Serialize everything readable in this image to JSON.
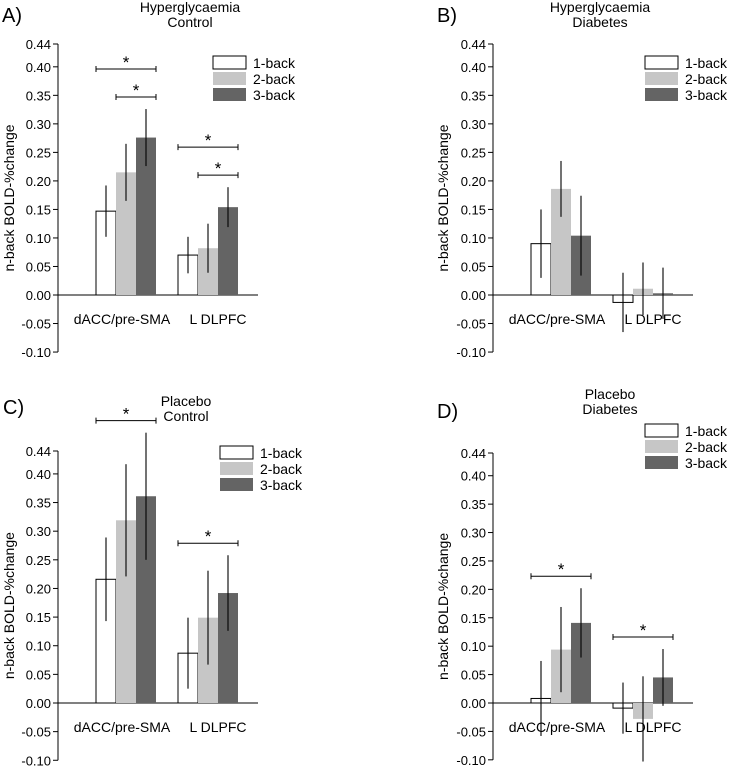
{
  "figure": {
    "legend": [
      {
        "name": "1-back",
        "color": "#ffffff"
      },
      {
        "name": "2-back",
        "color": "#c6c6c6"
      },
      {
        "name": "3-back",
        "color": "#646464"
      }
    ]
  },
  "chart_data": [
    {
      "type": "bar",
      "panel_label": "A)",
      "title": [
        "Hyperglycaemia",
        "Control"
      ],
      "ylabel": "n-back BOLD-%change",
      "ylim": [
        -0.1,
        0.44
      ],
      "yticks": [
        "0.44",
        "0.40",
        "0.35",
        "0.30",
        "0.25",
        "0.20",
        "0.15",
        "0.10",
        "0.05",
        "0.00",
        "-0.05",
        "-0.10"
      ],
      "categories": [
        "dACC/pre-SMA",
        "L DLPFC"
      ],
      "series": [
        {
          "name": "1-back",
          "values": [
            0.147,
            0.07
          ],
          "error": [
            0.045,
            0.032
          ]
        },
        {
          "name": "2-back",
          "values": [
            0.215,
            0.082
          ],
          "error": [
            0.05,
            0.043
          ]
        },
        {
          "name": "3-back",
          "values": [
            0.276,
            0.154
          ],
          "error": [
            0.05,
            0.035
          ]
        }
      ],
      "significance": [
        {
          "category": 0,
          "from": 0,
          "to": 2,
          "label": "*"
        },
        {
          "category": 0,
          "from": 1,
          "to": 2,
          "label": "*"
        },
        {
          "category": 1,
          "from": 0,
          "to": 2,
          "label": "*"
        },
        {
          "category": 1,
          "from": 1,
          "to": 2,
          "label": "*"
        }
      ]
    },
    {
      "type": "bar",
      "panel_label": "B)",
      "title": [
        "Hyperglycaemia",
        "Diabetes"
      ],
      "ylabel": "n-back BOLD-%change",
      "ylim": [
        -0.1,
        0.44
      ],
      "yticks": [
        "0.44",
        "0.40",
        "0.35",
        "0.30",
        "0.25",
        "0.20",
        "0.15",
        "0.10",
        "0.05",
        "0.00",
        "-0.05",
        "-0.10"
      ],
      "categories": [
        "dACC/pre-SMA",
        "L DLPFC"
      ],
      "series": [
        {
          "name": "1-back",
          "values": [
            0.09,
            -0.013
          ],
          "error": [
            0.06,
            0.052
          ]
        },
        {
          "name": "2-back",
          "values": [
            0.186,
            0.011
          ],
          "error": [
            0.049,
            0.046
          ]
        },
        {
          "name": "3-back",
          "values": [
            0.104,
            0.003
          ],
          "error": [
            0.07,
            0.045
          ]
        }
      ],
      "significance": []
    },
    {
      "type": "bar",
      "panel_label": "C)",
      "title": [
        "Placebo",
        "Control"
      ],
      "ylabel": "n-back BOLD-%change",
      "ylim": [
        -0.1,
        0.44
      ],
      "yticks": [
        "0.44",
        "0.40",
        "0.35",
        "0.30",
        "0.25",
        "0.20",
        "0.15",
        "0.10",
        "0.05",
        "0.00",
        "-0.05",
        "-0.10"
      ],
      "categories": [
        "dACC/pre-SMA",
        "L DLPFC"
      ],
      "series": [
        {
          "name": "1-back",
          "values": [
            0.216,
            0.087
          ],
          "error": [
            0.073,
            0.062
          ]
        },
        {
          "name": "2-back",
          "values": [
            0.319,
            0.149
          ],
          "error": [
            0.098,
            0.082
          ]
        },
        {
          "name": "3-back",
          "values": [
            0.361,
            0.192
          ],
          "error": [
            0.111,
            0.066
          ]
        }
      ],
      "significance": [
        {
          "category": 0,
          "from": 0,
          "to": 2,
          "label": "*"
        },
        {
          "category": 1,
          "from": 0,
          "to": 2,
          "label": "*"
        }
      ]
    },
    {
      "type": "bar",
      "panel_label": "D)",
      "title": [
        "Placebo",
        "Diabetes"
      ],
      "ylabel": "n-back BOLD-%change",
      "ylim": [
        -0.1,
        0.44
      ],
      "yticks": [
        "0.44",
        "0.40",
        "0.35",
        "0.30",
        "0.25",
        "0.20",
        "0.15",
        "0.10",
        "0.05",
        "0.00",
        "-0.05",
        "-0.10"
      ],
      "categories": [
        "dACC/pre-SMA",
        "L DLPFC"
      ],
      "series": [
        {
          "name": "1-back",
          "values": [
            0.008,
            -0.009
          ],
          "error": [
            0.066,
            0.045
          ]
        },
        {
          "name": "2-back",
          "values": [
            0.094,
            -0.028
          ],
          "error": [
            0.075,
            0.075
          ]
        },
        {
          "name": "3-back",
          "values": [
            0.141,
            0.045
          ],
          "error": [
            0.061,
            0.05
          ]
        }
      ],
      "significance": [
        {
          "category": 0,
          "from": 0,
          "to": 2,
          "label": "*"
        },
        {
          "category": 1,
          "from": 0,
          "to": 2,
          "label": "*"
        }
      ]
    }
  ]
}
